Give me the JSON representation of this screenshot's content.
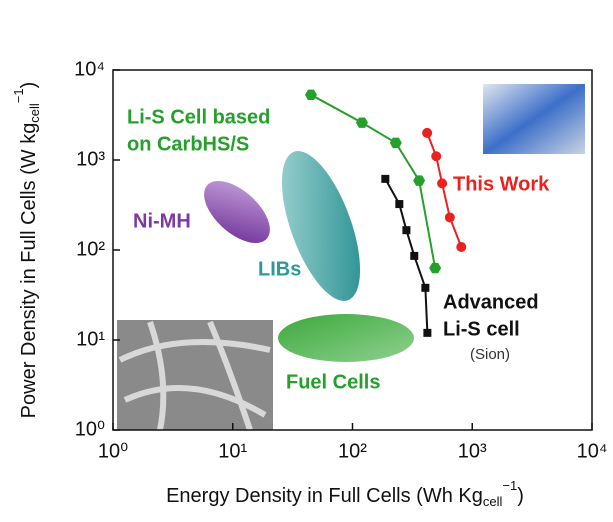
{
  "chart_data": {
    "type": "scatter",
    "x_label": {
      "text": "Energy Density in Full Cells (Wh Kg",
      "sub": "cell",
      "sup": "−1",
      "end": ")"
    },
    "y_label": {
      "text": "Power Density in Full Cells (W kg",
      "sub": "cell",
      "sup": "−1",
      "end": ")"
    },
    "log_x": true,
    "log_y": true,
    "xlim": [
      1,
      10000
    ],
    "ylim": [
      1,
      10000
    ],
    "xticks": [
      {
        "value": 1,
        "label": "10⁰"
      },
      {
        "value": 10,
        "label": "10¹"
      },
      {
        "value": 100,
        "label": "10²"
      },
      {
        "value": 1000,
        "label": "10³"
      },
      {
        "value": 10000,
        "label": "10⁴"
      }
    ],
    "yticks": [
      {
        "value": 1,
        "label": "10⁰"
      },
      {
        "value": 10,
        "label": "10¹"
      },
      {
        "value": 100,
        "label": "10²"
      },
      {
        "value": 1000,
        "label": "10³"
      },
      {
        "value": 10000,
        "label": "10⁴"
      }
    ],
    "series": [
      {
        "name": "This Work",
        "color": "#e8231f",
        "marker": "circle",
        "x": [
          420,
          500,
          560,
          650,
          810
        ],
        "values": [
          2000,
          1100,
          550,
          230,
          108
        ]
      },
      {
        "name_lines": [
          "Li-S Cell based",
          "on CarbHS/S"
        ],
        "color": "#25a02a",
        "marker": "hexagon",
        "x": [
          45,
          120,
          230,
          360,
          490
        ],
        "values": [
          5300,
          2600,
          1550,
          590,
          63
        ]
      },
      {
        "name_lines": [
          "Advanced",
          "Li-S cell"
        ],
        "note": "(Sion)",
        "color": "#111111",
        "marker": "square",
        "x": [
          188,
          246,
          282,
          328,
          406,
          422
        ],
        "values": [
          617,
          324,
          166,
          86,
          38,
          12
        ]
      }
    ],
    "regions": [
      "Ni-MH",
      "LIBs",
      "Fuel Cells"
    ]
  }
}
